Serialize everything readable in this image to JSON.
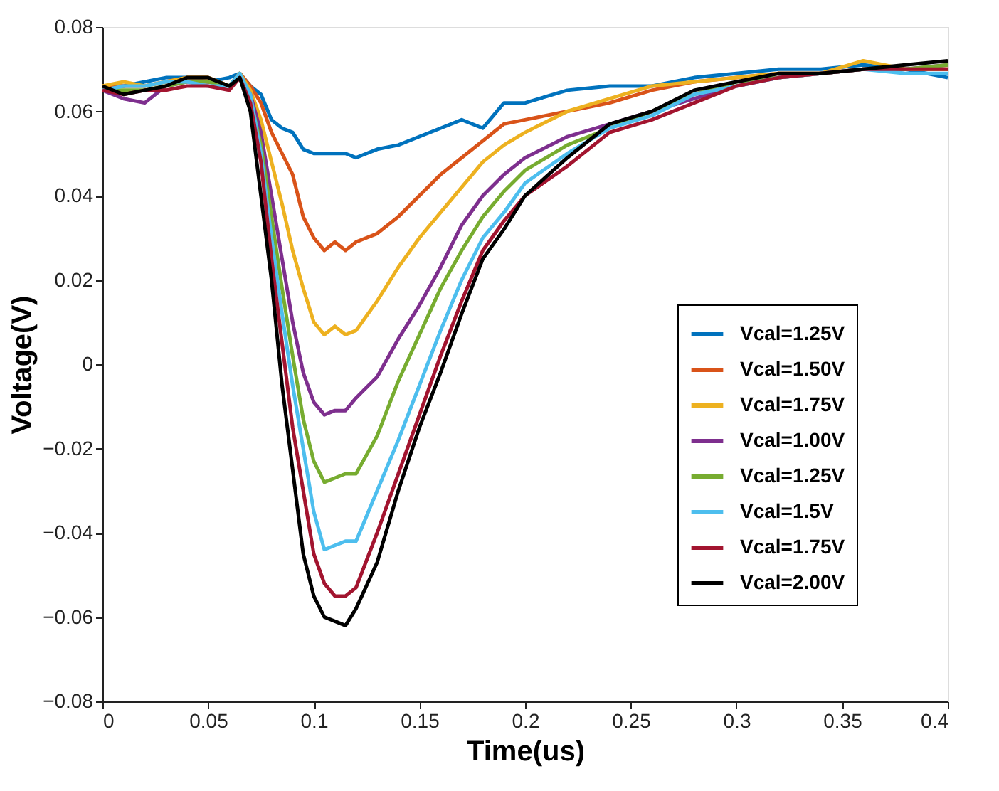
{
  "chart_data": {
    "type": "line",
    "xlabel": "Time(us)",
    "ylabel": "Voltage(V)",
    "x": [
      0,
      0.01,
      0.02,
      0.03,
      0.04,
      0.05,
      0.06,
      0.065,
      0.07,
      0.075,
      0.08,
      0.085,
      0.09,
      0.095,
      0.1,
      0.105,
      0.11,
      0.115,
      0.12,
      0.13,
      0.14,
      0.15,
      0.16,
      0.17,
      0.18,
      0.19,
      0.2,
      0.22,
      0.24,
      0.26,
      0.28,
      0.3,
      0.32,
      0.34,
      0.36,
      0.38,
      0.4
    ],
    "series": [
      {
        "name": "Vcal=1.25V",
        "color": "#0072bd",
        "values": [
          0.066,
          0.066,
          0.067,
          0.068,
          0.068,
          0.067,
          0.068,
          0.069,
          0.066,
          0.064,
          0.058,
          0.056,
          0.055,
          0.051,
          0.05,
          0.05,
          0.05,
          0.05,
          0.049,
          0.051,
          0.052,
          0.054,
          0.056,
          0.058,
          0.056,
          0.062,
          0.062,
          0.065,
          0.066,
          0.066,
          0.068,
          0.069,
          0.07,
          0.07,
          0.071,
          0.07,
          0.068
        ]
      },
      {
        "name": "Vcal=1.50V",
        "color": "#d95319",
        "values": [
          0.066,
          0.066,
          0.066,
          0.067,
          0.068,
          0.068,
          0.066,
          0.069,
          0.066,
          0.062,
          0.055,
          0.05,
          0.045,
          0.035,
          0.03,
          0.027,
          0.029,
          0.027,
          0.029,
          0.031,
          0.035,
          0.04,
          0.045,
          0.049,
          0.053,
          0.057,
          0.058,
          0.06,
          0.062,
          0.065,
          0.067,
          0.068,
          0.069,
          0.069,
          0.07,
          0.07,
          0.07
        ]
      },
      {
        "name": "Vcal=1.75V",
        "color": "#edb120",
        "values": [
          0.066,
          0.067,
          0.066,
          0.067,
          0.068,
          0.068,
          0.066,
          0.069,
          0.065,
          0.058,
          0.048,
          0.038,
          0.027,
          0.018,
          0.01,
          0.007,
          0.009,
          0.007,
          0.008,
          0.015,
          0.023,
          0.03,
          0.036,
          0.042,
          0.048,
          0.052,
          0.055,
          0.06,
          0.063,
          0.066,
          0.067,
          0.068,
          0.069,
          0.069,
          0.072,
          0.07,
          0.07
        ]
      },
      {
        "name": "Vcal=1.00V",
        "color": "#7e2f8e",
        "values": [
          0.065,
          0.063,
          0.062,
          0.066,
          0.067,
          0.067,
          0.066,
          0.068,
          0.064,
          0.055,
          0.04,
          0.025,
          0.01,
          -0.002,
          -0.009,
          -0.012,
          -0.011,
          -0.011,
          -0.008,
          -0.003,
          0.006,
          0.014,
          0.023,
          0.033,
          0.04,
          0.045,
          0.049,
          0.054,
          0.057,
          0.06,
          0.063,
          0.066,
          0.068,
          0.069,
          0.07,
          0.07,
          0.071
        ]
      },
      {
        "name": "Vcal=1.25V",
        "color": "#77ac30",
        "values": [
          0.065,
          0.065,
          0.065,
          0.066,
          0.067,
          0.067,
          0.066,
          0.068,
          0.063,
          0.052,
          0.035,
          0.018,
          0.002,
          -0.013,
          -0.023,
          -0.028,
          -0.027,
          -0.026,
          -0.026,
          -0.017,
          -0.004,
          0.007,
          0.018,
          0.027,
          0.035,
          0.041,
          0.046,
          0.052,
          0.056,
          0.06,
          0.064,
          0.067,
          0.068,
          0.069,
          0.07,
          0.07,
          0.071
        ]
      },
      {
        "name": "Vcal=1.5V",
        "color": "#4dbeee",
        "values": [
          0.065,
          0.066,
          0.066,
          0.067,
          0.067,
          0.066,
          0.066,
          0.069,
          0.064,
          0.05,
          0.03,
          0.012,
          -0.005,
          -0.02,
          -0.035,
          -0.044,
          -0.043,
          -0.042,
          -0.042,
          -0.03,
          -0.018,
          -0.005,
          0.008,
          0.02,
          0.03,
          0.036,
          0.043,
          0.05,
          0.056,
          0.059,
          0.064,
          0.066,
          0.068,
          0.069,
          0.07,
          0.069,
          0.069
        ]
      },
      {
        "name": "Vcal=1.75V",
        "color": "#a2142f",
        "values": [
          0.065,
          0.064,
          0.065,
          0.065,
          0.066,
          0.066,
          0.065,
          0.068,
          0.062,
          0.048,
          0.025,
          0.005,
          -0.015,
          -0.03,
          -0.045,
          -0.052,
          -0.055,
          -0.055,
          -0.053,
          -0.04,
          -0.026,
          -0.012,
          0.002,
          0.015,
          0.027,
          0.034,
          0.04,
          0.047,
          0.055,
          0.058,
          0.062,
          0.066,
          0.068,
          0.069,
          0.07,
          0.07,
          0.07
        ]
      },
      {
        "name": "Vcal=2.00V",
        "color": "#000000",
        "values": [
          0.066,
          0.064,
          0.065,
          0.066,
          0.068,
          0.068,
          0.066,
          0.068,
          0.06,
          0.04,
          0.02,
          -0.005,
          -0.025,
          -0.045,
          -0.055,
          -0.06,
          -0.061,
          -0.062,
          -0.058,
          -0.047,
          -0.03,
          -0.015,
          -0.002,
          0.012,
          0.025,
          0.032,
          0.04,
          0.049,
          0.057,
          0.06,
          0.065,
          0.067,
          0.069,
          0.069,
          0.07,
          0.071,
          0.072
        ]
      }
    ],
    "xlim": [
      0,
      0.4
    ],
    "xticks": [
      0,
      0.05,
      0.1,
      0.15,
      0.2,
      0.25,
      0.3,
      0.35,
      0.4
    ],
    "ylim": [
      -0.08,
      0.08
    ],
    "yticks": [
      -0.08,
      -0.06,
      -0.04,
      -0.02,
      0,
      0.02,
      0.04,
      0.06,
      0.08
    ],
    "grid": false,
    "legend": "right",
    "marker": "none",
    "line_style": "solid"
  }
}
